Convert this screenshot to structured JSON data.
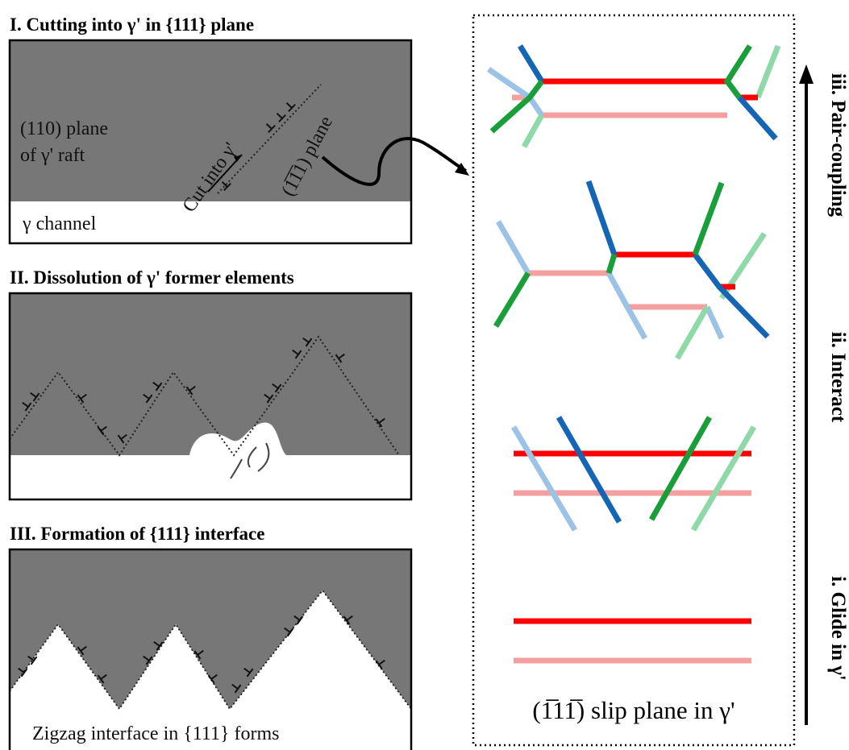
{
  "panels": [
    {
      "title": "I. Cutting into γ' in {111} plane",
      "labels": [
        "(110) plane",
        "of γ' raft",
        "Cut into γ'",
        "(1̅1̅1) plane",
        "γ channel"
      ]
    },
    {
      "title": "II. Dissolution of γ' former elements"
    },
    {
      "title": "III. Formation of {111} interface",
      "labels": [
        "Zigzag interface in {111} forms"
      ]
    }
  ],
  "right_panel": {
    "stages": [
      "iii. Pair-coupling",
      "ii. Interact",
      "i. Glide in γ'"
    ],
    "caption": "(1̅11̅) slip plane in γ'"
  }
}
